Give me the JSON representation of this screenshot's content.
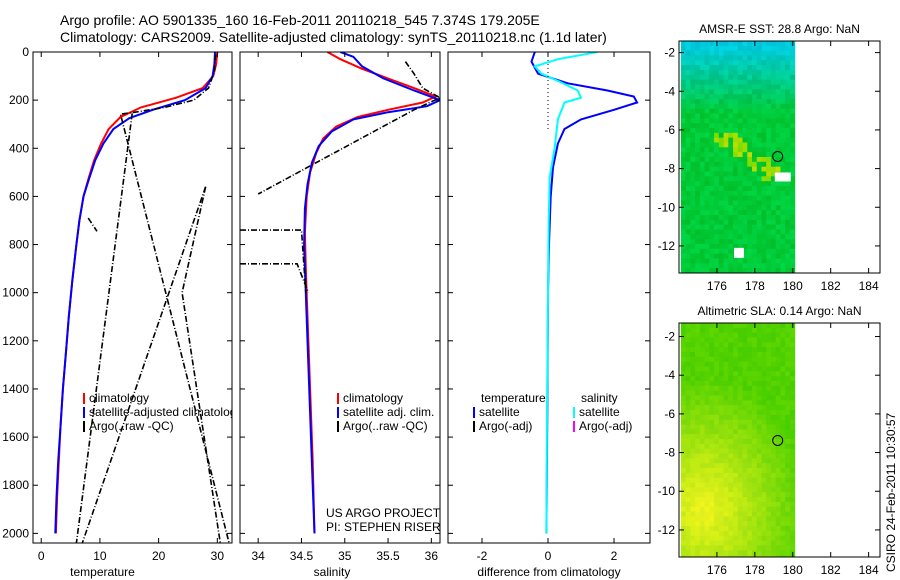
{
  "title_line1": "Argo profile: AO 5901335_160 16-Feb-2011 20110218_545 7.374S 179.205E",
  "title_line2": "Climatology: CARS2009. Satellite-adjusted climatology: synTS_20110218.nc (1.1d later)",
  "footer_vertical": "CSIRO 24-Feb-2011 10:30:57",
  "colors": {
    "clim": "#ff0000",
    "sat": "#0000ff",
    "argo": "#000000",
    "sal_sat": "#00ffff",
    "sal_argo": "#ff00ff"
  },
  "chart_data": [
    {
      "id": "temperature",
      "type": "line",
      "xlabel": "temperature",
      "ylabel": "",
      "xlim": [
        -1.4,
        32.5
      ],
      "ylim": [
        2040,
        0
      ],
      "xticks": [
        0,
        10,
        20,
        30
      ],
      "xtick_labels": [
        "0",
        "10",
        "20",
        "30"
      ],
      "yticks": [
        0,
        200,
        400,
        600,
        800,
        1000,
        1200,
        1400,
        1600,
        1800,
        2000
      ],
      "ytick_labels": [
        "0",
        "200",
        "400",
        "600",
        "800",
        "1000",
        "1200",
        "1400",
        "1600",
        "1800",
        "2000"
      ],
      "legend": {
        "placement": "lower-left",
        "entries": [
          "climatology",
          "satellite-adjusted climatology",
          "Argo(..raw -QC)"
        ]
      },
      "series": [
        {
          "name": "climatology",
          "color": "#ff0000",
          "points": [
            [
              30.0,
              0
            ],
            [
              29.8,
              50
            ],
            [
              29.3,
              100
            ],
            [
              27.5,
              150
            ],
            [
              23,
              190
            ],
            [
              17,
              230
            ],
            [
              13.5,
              270
            ],
            [
              11.5,
              320
            ],
            [
              10.2,
              380
            ],
            [
              9,
              450
            ],
            [
              8,
              530
            ],
            [
              7.2,
              600
            ],
            [
              6.5,
              700
            ],
            [
              6,
              800
            ],
            [
              5.3,
              950
            ],
            [
              4.7,
              1100
            ],
            [
              4.2,
              1250
            ],
            [
              3.7,
              1400
            ],
            [
              3.3,
              1550
            ],
            [
              3,
              1700
            ],
            [
              2.7,
              1850
            ],
            [
              2.5,
              2000
            ]
          ]
        },
        {
          "name": "satellite-adjusted climatology",
          "color": "#0000ff",
          "points": [
            [
              29.6,
              0
            ],
            [
              29.5,
              50
            ],
            [
              29.2,
              100
            ],
            [
              28,
              150
            ],
            [
              24.5,
              200
            ],
            [
              19,
              240
            ],
            [
              15,
              275
            ],
            [
              12.3,
              320
            ],
            [
              10.6,
              380
            ],
            [
              9.2,
              450
            ],
            [
              8.1,
              530
            ],
            [
              7.2,
              600
            ],
            [
              6.5,
              700
            ],
            [
              6,
              800
            ],
            [
              5.3,
              950
            ],
            [
              4.7,
              1100
            ],
            [
              4.2,
              1250
            ],
            [
              3.7,
              1400
            ],
            [
              3.3,
              1550
            ],
            [
              2.9,
              1700
            ],
            [
              2.6,
              1850
            ],
            [
              2.4,
              2000
            ]
          ]
        },
        {
          "name": "Argo(..raw -QC)",
          "color": "#000000",
          "dash": true,
          "points": [
            [
              29.7,
              10
            ],
            [
              29.5,
              80
            ],
            [
              28.5,
              150
            ],
            [
              26,
              200
            ],
            [
              21,
              230
            ],
            [
              16,
              250
            ],
            [
              13.5,
              258
            ],
            [
              32,
              2040
            ]
          ]
        },
        {
          "name": "Argo(..raw -QC)",
          "color": "#000000",
          "dash": true,
          "points": [
            [
              15.5,
              255
            ],
            [
              6,
              2040
            ]
          ]
        },
        {
          "name": "Argo(..raw -QC)",
          "color": "#000000",
          "dash": true,
          "points": [
            [
              28,
              560
            ],
            [
              7,
              2040
            ]
          ]
        },
        {
          "name": "Argo(..raw -QC)",
          "color": "#000000",
          "dash": true,
          "points": [
            [
              28,
              560
            ],
            [
              24,
              1000
            ],
            [
              30.5,
              2040
            ]
          ]
        },
        {
          "name": "Argo(..raw -QC)",
          "color": "#000000",
          "dash": true,
          "points": [
            [
              8,
              690
            ],
            [
              9.5,
              745
            ]
          ]
        }
      ]
    },
    {
      "id": "salinity",
      "type": "line",
      "xlabel": "salinity",
      "xlim": [
        33.79,
        36.1
      ],
      "ylim": [
        2040,
        0
      ],
      "xticks": [
        34,
        34.5,
        35,
        35.5,
        36
      ],
      "xtick_labels": [
        "34",
        "34.5",
        "35",
        "35.5",
        "36"
      ],
      "yticks": [
        0,
        200,
        400,
        600,
        800,
        1000,
        1200,
        1400,
        1600,
        1800,
        2000
      ],
      "legend": {
        "placement": "lower-right",
        "entries": [
          "climatology",
          "satellite adj. clim.",
          "Argo(..raw -QC)"
        ]
      },
      "annotation": [
        "US ARGO PROJECT",
        "PI: STEPHEN RISER"
      ],
      "series": [
        {
          "name": "climatology",
          "color": "#ff0000",
          "points": [
            [
              34.8,
              0
            ],
            [
              34.95,
              30
            ],
            [
              35.2,
              70
            ],
            [
              35.5,
              110
            ],
            [
              35.8,
              150
            ],
            [
              36.05,
              185
            ],
            [
              35.9,
              210
            ],
            [
              35.5,
              240
            ],
            [
              35.15,
              270
            ],
            [
              34.9,
              310
            ],
            [
              34.75,
              360
            ],
            [
              34.67,
              420
            ],
            [
              34.6,
              500
            ],
            [
              34.56,
              600
            ],
            [
              34.54,
              750
            ],
            [
              34.55,
              900
            ],
            [
              34.57,
              1100
            ],
            [
              34.6,
              1400
            ],
            [
              34.63,
              1700
            ],
            [
              34.65,
              2000
            ]
          ]
        },
        {
          "name": "satellite adj. clim.",
          "color": "#0000ff",
          "points": [
            [
              34.95,
              0
            ],
            [
              35.1,
              20
            ],
            [
              35.2,
              60
            ],
            [
              35.45,
              110
            ],
            [
              35.8,
              160
            ],
            [
              36.1,
              200
            ],
            [
              35.95,
              225
            ],
            [
              35.5,
              250
            ],
            [
              35.1,
              280
            ],
            [
              34.85,
              330
            ],
            [
              34.7,
              390
            ],
            [
              34.62,
              460
            ],
            [
              34.57,
              550
            ],
            [
              34.54,
              650
            ],
            [
              34.53,
              800
            ],
            [
              34.55,
              1000
            ],
            [
              34.57,
              1200
            ],
            [
              34.6,
              1500
            ],
            [
              34.63,
              1800
            ],
            [
              34.65,
              2000
            ]
          ]
        },
        {
          "name": "Argo(..raw -QC)",
          "color": "#000000",
          "dash": true,
          "points": [
            [
              35.7,
              40
            ],
            [
              35.8,
              90
            ],
            [
              35.9,
              150
            ],
            [
              36.1,
              190
            ],
            [
              35.8,
              240
            ],
            [
              34,
              590
            ]
          ]
        },
        {
          "name": "Argo(..raw -QC)",
          "color": "#000000",
          "dash": true,
          "points": [
            [
              33.79,
              740
            ],
            [
              34.5,
              740
            ],
            [
              34.55,
              1000
            ]
          ]
        },
        {
          "name": "Argo(..raw -QC)",
          "color": "#000000",
          "dash": true,
          "points": [
            [
              33.79,
              880
            ],
            [
              34.45,
              880
            ],
            [
              34.58,
              1000
            ]
          ]
        }
      ]
    },
    {
      "id": "difference",
      "type": "line",
      "xlabel": "difference from climatology",
      "xlim": [
        -3.03,
        3.09
      ],
      "ylim": [
        2040,
        0
      ],
      "xticks": [
        -2,
        0,
        2
      ],
      "xtick_labels": [
        "-2",
        "0",
        "2"
      ],
      "yticks": [
        0,
        200,
        400,
        600,
        800,
        1000,
        1200,
        1400,
        1600,
        1800,
        2000
      ],
      "legend": {
        "placement": "lower-center",
        "headers": [
          "temperature",
          "salinity"
        ],
        "entries": [
          "satellite",
          "Argo(-adj)",
          "satellite",
          "Argo(-adj)"
        ]
      },
      "series": [
        {
          "name": "temperature satellite",
          "color": "#0000ff",
          "points": [
            [
              -0.4,
              0
            ],
            [
              -0.5,
              40
            ],
            [
              -0.3,
              90
            ],
            [
              0.6,
              130
            ],
            [
              1.8,
              160
            ],
            [
              2.6,
              185
            ],
            [
              2.7,
              210
            ],
            [
              2.0,
              240
            ],
            [
              1.0,
              280
            ],
            [
              0.5,
              320
            ],
            [
              0.3,
              380
            ],
            [
              0.15,
              480
            ],
            [
              0.08,
              600
            ],
            [
              0.03,
              800
            ],
            [
              0,
              1000
            ],
            [
              -0.02,
              1500
            ],
            [
              -0.05,
              2000
            ]
          ]
        },
        {
          "name": "salinity satellite",
          "color": "#00ffff",
          "points": [
            [
              1.5,
              0
            ],
            [
              0.3,
              30
            ],
            [
              -0.4,
              60
            ],
            [
              -0.2,
              90
            ],
            [
              0.3,
              120
            ],
            [
              0.9,
              160
            ],
            [
              1.0,
              190
            ],
            [
              0.5,
              210
            ],
            [
              0.3,
              280
            ],
            [
              0.2,
              400
            ],
            [
              0.05,
              520
            ],
            [
              0.02,
              700
            ],
            [
              0,
              1000
            ],
            [
              -0.03,
              1500
            ],
            [
              -0.05,
              2000
            ]
          ]
        },
        {
          "name": "zero reference",
          "color": "#000000",
          "dotted": true,
          "points": [
            [
              0,
              0
            ],
            [
              0,
              320
            ]
          ]
        }
      ]
    },
    {
      "id": "amsre_sst_map",
      "type": "heatmap",
      "title": "AMSR-E SST: 28.8 Argo: NaN",
      "xlim": [
        174,
        184.6
      ],
      "ylim": [
        -13.4,
        -1.4
      ],
      "data_lon_range": [
        174.1,
        180.1
      ],
      "xticks": [
        176,
        178,
        180,
        182,
        184
      ],
      "xtick_labels": [
        "176",
        "178",
        "180",
        "182",
        "184"
      ],
      "yticks": [
        -2,
        -4,
        -6,
        -8,
        -10,
        -12
      ],
      "ytick_labels": [
        "-2",
        "-4",
        "-6",
        "-8",
        "-10",
        "-12"
      ],
      "marker": {
        "lon": 179.205,
        "lat": -7.374
      },
      "palette": "sst"
    },
    {
      "id": "altimetric_sla_map",
      "type": "heatmap",
      "title": "Altimetric SLA: 0.14 Argo: NaN",
      "xlim": [
        174,
        184.6
      ],
      "ylim": [
        -13.4,
        -1.3
      ],
      "data_lon_range": [
        174.1,
        180.1
      ],
      "xticks": [
        176,
        178,
        180,
        182,
        184
      ],
      "xtick_labels": [
        "176",
        "178",
        "180",
        "182",
        "184"
      ],
      "yticks": [
        -2,
        -4,
        -6,
        -8,
        -10,
        -12
      ],
      "ytick_labels": [
        "-2",
        "-4",
        "-6",
        "-8",
        "-10",
        "-12"
      ],
      "marker": {
        "lon": 179.205,
        "lat": -7.374
      },
      "palette": "sla"
    }
  ]
}
